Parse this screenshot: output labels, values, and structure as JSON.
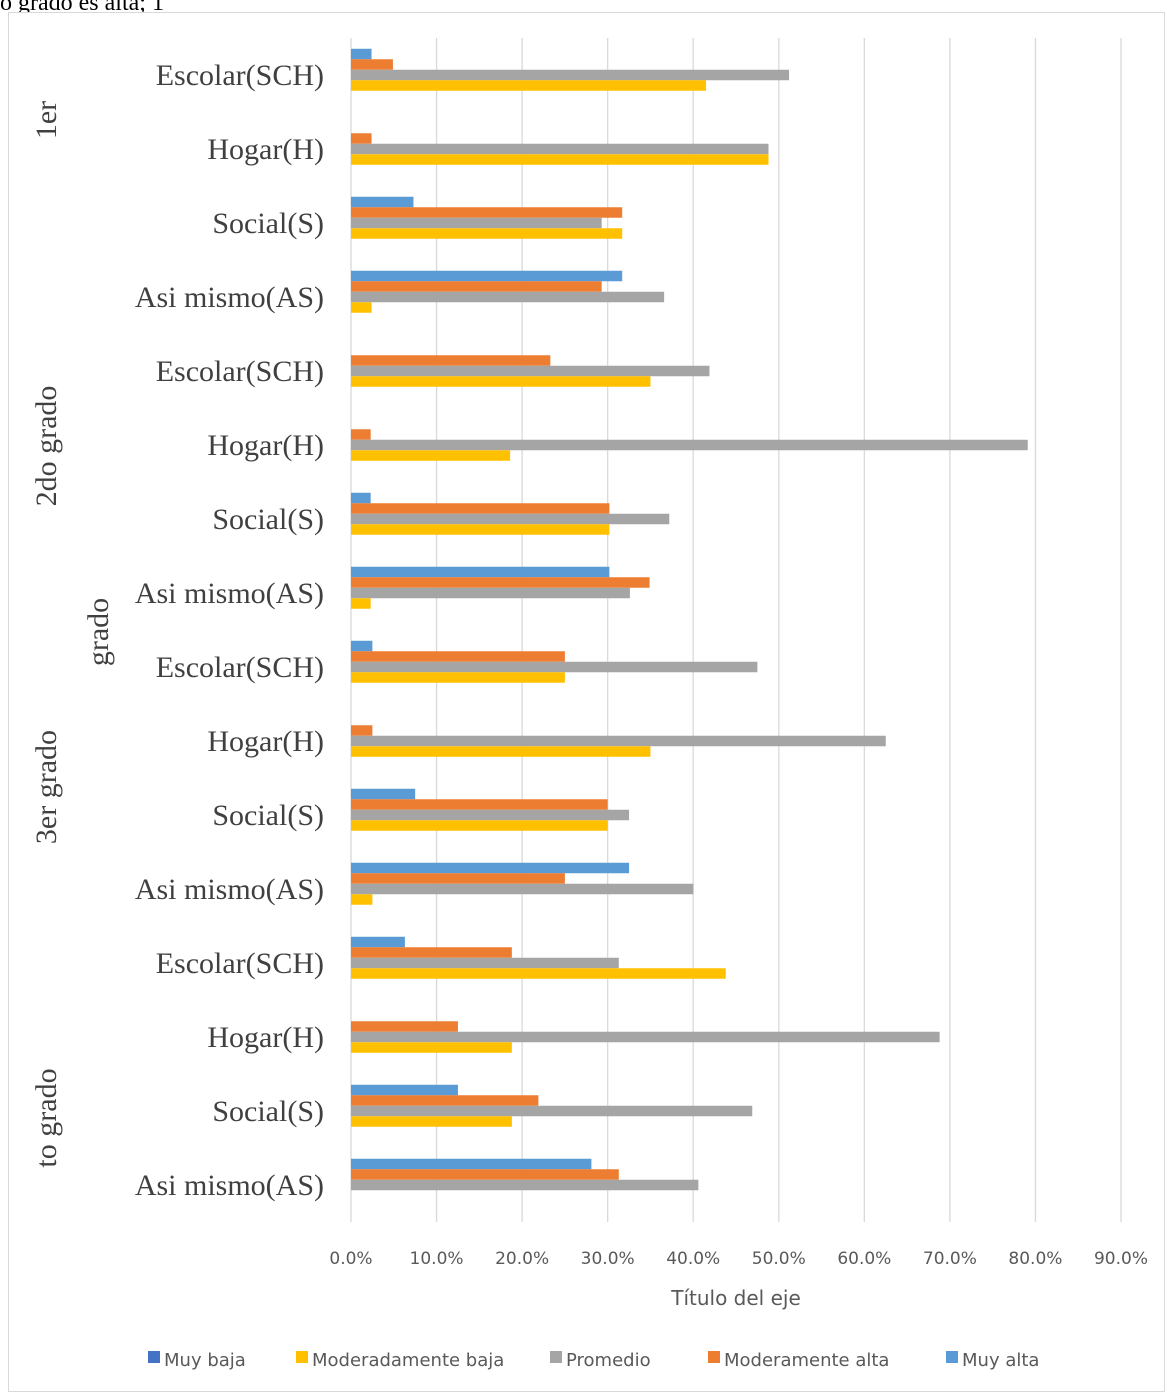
{
  "header_fragment": "o grado es alta; 1",
  "chart_data": {
    "type": "bar",
    "orientation": "horizontal",
    "xlabel": "Título del eje",
    "xlim": [
      0,
      90
    ],
    "x_ticks": [
      "0.0%",
      "10.0%",
      "20.0%",
      "30.0%",
      "40.0%",
      "50.0%",
      "60.0%",
      "70.0%",
      "80.0%",
      "90.0%"
    ],
    "grid": true,
    "legend_position": "bottom",
    "groups": [
      {
        "label": "1er",
        "categories": [
          "Escolar(SCH)",
          "Hogar(H)",
          "Social(S)",
          "Asi mismo(AS)"
        ]
      },
      {
        "label": "2do grado",
        "categories": [
          "Escolar(SCH)",
          "Hogar(H)",
          "Social(S)",
          "Asi mismo(AS)"
        ]
      },
      {
        "label": "grado",
        "categories": []
      },
      {
        "label": "3er grado",
        "categories": [
          "Escolar(SCH)",
          "Hogar(H)",
          "Social(S)",
          "Asi mismo(AS)"
        ]
      },
      {
        "label": "to grado",
        "categories": [
          "Escolar(SCH)",
          "Hogar(H)",
          "Social(S)",
          "Asi mismo(AS)"
        ]
      }
    ],
    "categories": [
      "Escolar(SCH)",
      "Hogar(H)",
      "Social(S)",
      "Asi mismo(AS)",
      "Escolar(SCH)",
      "Hogar(H)",
      "Social(S)",
      "Asi mismo(AS)",
      "Escolar(SCH)",
      "Hogar(H)",
      "Social(S)",
      "Asi mismo(AS)",
      "Escolar(SCH)",
      "Hogar(H)",
      "Social(S)",
      "Asi mismo(AS)"
    ],
    "series": [
      {
        "name": "Muy baja",
        "color": "#4472c4",
        "values": [
          0,
          0,
          0,
          0,
          0,
          0,
          0,
          0,
          0,
          0,
          0,
          0,
          0,
          0,
          0,
          0
        ]
      },
      {
        "name": "Moderadamente baja",
        "color": "#ffc000",
        "values": [
          41.5,
          48.8,
          31.7,
          2.4,
          35.0,
          18.6,
          30.2,
          2.3,
          25.0,
          35.0,
          30.0,
          2.5,
          43.8,
          18.8,
          18.8,
          0
        ]
      },
      {
        "name": "Promedio",
        "color": "#a5a5a5",
        "values": [
          51.2,
          48.8,
          29.3,
          36.6,
          41.9,
          79.1,
          37.2,
          32.6,
          47.5,
          62.5,
          32.5,
          40.0,
          31.3,
          68.8,
          46.9,
          40.6
        ]
      },
      {
        "name": "Moderamente alta",
        "color": "#ed7d31",
        "values": [
          4.9,
          2.4,
          31.7,
          29.3,
          23.3,
          2.3,
          30.2,
          34.9,
          25.0,
          2.5,
          30.0,
          25.0,
          18.8,
          12.5,
          21.9,
          31.3
        ]
      },
      {
        "name": "Muy alta",
        "color": "#5b9bd5",
        "values": [
          2.4,
          0,
          7.3,
          31.7,
          0,
          0,
          2.3,
          30.2,
          2.5,
          0,
          7.5,
          32.5,
          6.3,
          0,
          12.5,
          28.1
        ]
      }
    ]
  }
}
